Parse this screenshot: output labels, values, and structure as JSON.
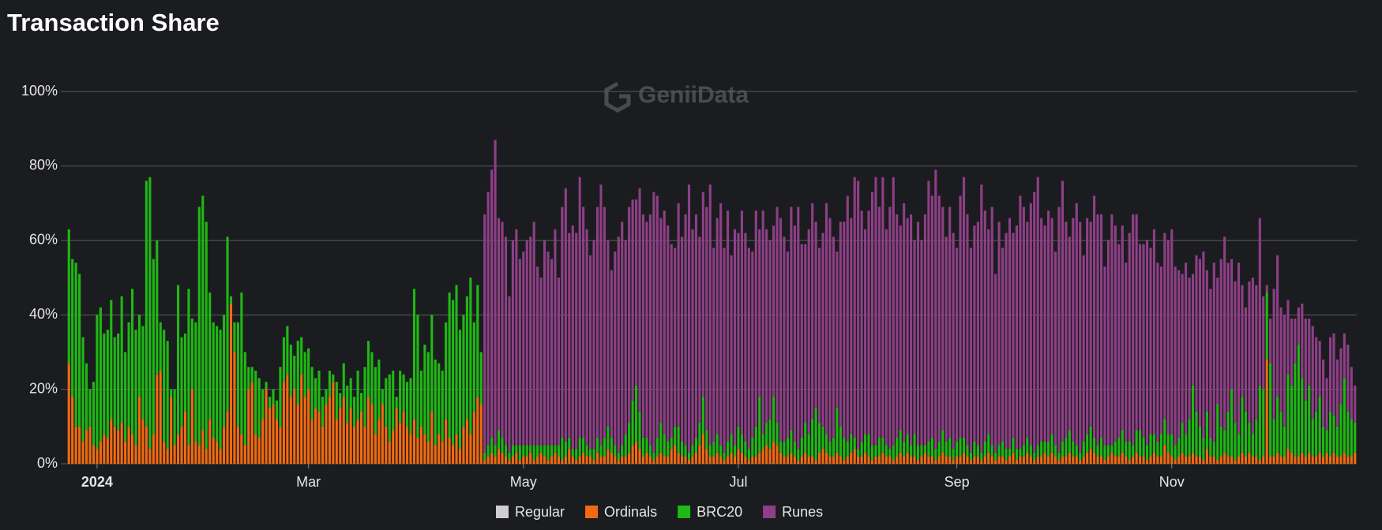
{
  "chart_data": {
    "type": "stacked-bar",
    "title": "Transaction Share",
    "watermark": "GeniiData",
    "xlim": [
      -0.5,
      365.5
    ],
    "xticks": [
      {
        "value": 8,
        "label": "2024"
      },
      {
        "value": 68,
        "label": "Mar"
      },
      {
        "value": 129,
        "label": "May"
      },
      {
        "value": 190,
        "label": "Jul"
      },
      {
        "value": 252,
        "label": "Sep"
      },
      {
        "value": 313,
        "label": "Nov"
      }
    ],
    "ylim": [
      0,
      100
    ],
    "yticks": [
      {
        "value": 0,
        "label": "0%"
      },
      {
        "value": 20,
        "label": "20%"
      },
      {
        "value": 40,
        "label": "40%"
      },
      {
        "value": 60,
        "label": "60%"
      },
      {
        "value": 80,
        "label": "80%"
      },
      {
        "value": 100,
        "label": "100%"
      }
    ],
    "grid": true,
    "legend": "bottom",
    "series": [
      {
        "name": "Regular",
        "color": "#cfcfcf",
        "hidden": true
      },
      {
        "name": "Ordinals",
        "color": "#f26a0f",
        "values": [
          27,
          18,
          10,
          10,
          6,
          9,
          10,
          5,
          4,
          6,
          8,
          7,
          12,
          10,
          9,
          11,
          6,
          10,
          8,
          5,
          18,
          12,
          10,
          4,
          8,
          24,
          25,
          6,
          4,
          18,
          5,
          8,
          10,
          14,
          5,
          20,
          6,
          5,
          9,
          4,
          12,
          7,
          6,
          4,
          10,
          14,
          43,
          30,
          10,
          8,
          5,
          20,
          22,
          8,
          7,
          12,
          20,
          15,
          16,
          12,
          10,
          22,
          24,
          18,
          20,
          16,
          24,
          18,
          20,
          12,
          15,
          14,
          10,
          16,
          18,
          22,
          12,
          15,
          18,
          11,
          15,
          10,
          12,
          14,
          10,
          18,
          16,
          8,
          12,
          16,
          10,
          6,
          9,
          15,
          11,
          14,
          10,
          8,
          12,
          7,
          10,
          8,
          6,
          14,
          5,
          8,
          6,
          12,
          7,
          5,
          8,
          4,
          10,
          12,
          8,
          14,
          18,
          16,
          1,
          2,
          3,
          2,
          4,
          3,
          2,
          1,
          2,
          3,
          1,
          2,
          2,
          3,
          1,
          2,
          3,
          2,
          1,
          2,
          3,
          2,
          1,
          2,
          4,
          2,
          1,
          2,
          3,
          2,
          2,
          1,
          3,
          2,
          2,
          4,
          3,
          2,
          1,
          2,
          2,
          3,
          5,
          6,
          4,
          2,
          3,
          2,
          1,
          2,
          3,
          2,
          2,
          4,
          5,
          3,
          2,
          2,
          1,
          2,
          3,
          5,
          8,
          4,
          2,
          2,
          3,
          2,
          1,
          2,
          3,
          2,
          4,
          3,
          2,
          1,
          2,
          2,
          3,
          4,
          5,
          4,
          6,
          5,
          3,
          2,
          2,
          3,
          2,
          1,
          2,
          3,
          2,
          2,
          1,
          3,
          4,
          3,
          2,
          2,
          3,
          2,
          1,
          2,
          3,
          4,
          2,
          2,
          3,
          2,
          1,
          2,
          2,
          3,
          2,
          2,
          1,
          2,
          3,
          2,
          3,
          2,
          2,
          1,
          2,
          3,
          2,
          2,
          1,
          2,
          3,
          2,
          2,
          1,
          2,
          2,
          3,
          2,
          1,
          2,
          2,
          1,
          2,
          3,
          2,
          1,
          2,
          2,
          1,
          2,
          3,
          1,
          2,
          2,
          3,
          2,
          1,
          2,
          2,
          3,
          2,
          3,
          2,
          1,
          2,
          2,
          3,
          2,
          2,
          1,
          2,
          3,
          4,
          3,
          2,
          2,
          1,
          2,
          3,
          2,
          2,
          3,
          2,
          1,
          2,
          3,
          2,
          2,
          1,
          2,
          3,
          2,
          2,
          5,
          3,
          2,
          1,
          2,
          3,
          2,
          2,
          3,
          2,
          2,
          1,
          4,
          2,
          2,
          1,
          2,
          3,
          2,
          2,
          1,
          2,
          3,
          2,
          3,
          2,
          2,
          1,
          2,
          28,
          2,
          2,
          3,
          2,
          2,
          4,
          3,
          2,
          2,
          3,
          2,
          3,
          2,
          2,
          3,
          2,
          3,
          2,
          3,
          2,
          2,
          3,
          2,
          2,
          3
        ]
      },
      {
        "name": "BRC20",
        "color": "#1fb814",
        "values": [
          36,
          37,
          44,
          41,
          28,
          18,
          10,
          17,
          36,
          36,
          27,
          29,
          32,
          24,
          26,
          34,
          24,
          28,
          39,
          31,
          22,
          25,
          66,
          73,
          47,
          36,
          13,
          30,
          29,
          2,
          15,
          40,
          24,
          21,
          42,
          19,
          32,
          64,
          63,
          61,
          34,
          31,
          31,
          32,
          30,
          47,
          2,
          8,
          28,
          38,
          25,
          6,
          4,
          17,
          16,
          8,
          2,
          3,
          4,
          5,
          16,
          12,
          13,
          14,
          9,
          17,
          10,
          12,
          11,
          14,
          8,
          11,
          8,
          4,
          7,
          2,
          10,
          4,
          9,
          10,
          8,
          8,
          13,
          5,
          16,
          15,
          14,
          18,
          16,
          4,
          13,
          18,
          16,
          3,
          14,
          10,
          12,
          15,
          35,
          33,
          15,
          24,
          24,
          26,
          23,
          19,
          19,
          26,
          39,
          39,
          40,
          32,
          30,
          33,
          42,
          24,
          30,
          14,
          2,
          3,
          4,
          3,
          5,
          4,
          3,
          2,
          3,
          2,
          4,
          3,
          3,
          2,
          4,
          3,
          2,
          3,
          4,
          3,
          2,
          3,
          6,
          4,
          3,
          2,
          3,
          5,
          4,
          3,
          2,
          3,
          4,
          3,
          5,
          6,
          4,
          3,
          2,
          3,
          6,
          8,
          12,
          15,
          10,
          5,
          4,
          3,
          2,
          5,
          8,
          6,
          4,
          3,
          5,
          7,
          4,
          3,
          2,
          3,
          4,
          6,
          10,
          5,
          3,
          4,
          5,
          3,
          2,
          4,
          5,
          3,
          6,
          5,
          4,
          3,
          5,
          8,
          15,
          4,
          6,
          8,
          12,
          6,
          3,
          4,
          5,
          6,
          4,
          3,
          5,
          8,
          6,
          10,
          14,
          8,
          6,
          5,
          4,
          5,
          12,
          8,
          6,
          4,
          5,
          3,
          2,
          4,
          5,
          6,
          4,
          3,
          5,
          4,
          3,
          2,
          4,
          5,
          6,
          4,
          5,
          3,
          6,
          4,
          3,
          2,
          4,
          5,
          3,
          4,
          6,
          4,
          5,
          3,
          4,
          5,
          4,
          3,
          2,
          4,
          3,
          2,
          4,
          5,
          3,
          2,
          3,
          4,
          3,
          2,
          4,
          3,
          2,
          3,
          4,
          3,
          2,
          3,
          4,
          3,
          4,
          5,
          3,
          2,
          4,
          5,
          6,
          4,
          3,
          2,
          4,
          5,
          6,
          4,
          3,
          5,
          4,
          3,
          2,
          4,
          5,
          6,
          4,
          5,
          3,
          6,
          7,
          5,
          4,
          6,
          5,
          4,
          6,
          7,
          5,
          6,
          4,
          5,
          8,
          6,
          10,
          18,
          12,
          8,
          6,
          10,
          5,
          4,
          15,
          8,
          6,
          12,
          18,
          10,
          6,
          15,
          12,
          8,
          6,
          10,
          20,
          18,
          18,
          25,
          10,
          15,
          12,
          8,
          20,
          18,
          25,
          30,
          20,
          15,
          18,
          10,
          12,
          15,
          8,
          6,
          12,
          10,
          8,
          14,
          20,
          12,
          10,
          8
        ]
      },
      {
        "name": "Runes",
        "color": "#8e3f86",
        "values": [
          null,
          null,
          null,
          null,
          null,
          null,
          null,
          null,
          null,
          null,
          null,
          null,
          null,
          null,
          null,
          null,
          null,
          null,
          null,
          null,
          null,
          null,
          null,
          null,
          null,
          null,
          null,
          null,
          null,
          null,
          null,
          null,
          null,
          null,
          null,
          null,
          null,
          null,
          null,
          null,
          null,
          null,
          null,
          null,
          null,
          null,
          null,
          null,
          null,
          null,
          null,
          null,
          null,
          null,
          null,
          null,
          null,
          null,
          null,
          null,
          null,
          null,
          null,
          null,
          null,
          null,
          null,
          null,
          null,
          null,
          null,
          null,
          null,
          null,
          null,
          null,
          null,
          null,
          null,
          null,
          null,
          null,
          null,
          null,
          null,
          null,
          null,
          null,
          null,
          null,
          null,
          null,
          null,
          null,
          null,
          null,
          null,
          null,
          null,
          null,
          null,
          null,
          null,
          null,
          null,
          null,
          null,
          null,
          null,
          null,
          null,
          null,
          null,
          null,
          null,
          null,
          null,
          null,
          64,
          68,
          72,
          82,
          57,
          58,
          56,
          42,
          55,
          58,
          50,
          52,
          55,
          56,
          60,
          48,
          45,
          55,
          52,
          50,
          58,
          45,
          62,
          68,
          55,
          60,
          58,
          70,
          62,
          58,
          52,
          56,
          62,
          70,
          62,
          50,
          45,
          52,
          58,
          60,
          52,
          58,
          54,
          50,
          60,
          60,
          58,
          62,
          70,
          65,
          55,
          60,
          58,
          52,
          48,
          60,
          55,
          62,
          72,
          58,
          60,
          50,
          55,
          60,
          70,
          52,
          58,
          65,
          55,
          62,
          48,
          58,
          52,
          60,
          56,
          54,
          50,
          58,
          45,
          60,
          52,
          48,
          46,
          58,
          60,
          55,
          50,
          60,
          58,
          65,
          52,
          48,
          55,
          58,
          50,
          47,
          52,
          62,
          60,
          54,
          42,
          55,
          58,
          66,
          58,
          70,
          72,
          62,
          55,
          60,
          68,
          72,
          62,
          70,
          58,
          65,
          72,
          60,
          55,
          64,
          58,
          62,
          52,
          60,
          55,
          62,
          70,
          65,
          75,
          66,
          60,
          55,
          62,
          58,
          52,
          65,
          70,
          62,
          55,
          58,
          60,
          72,
          62,
          55,
          64,
          48,
          60,
          52,
          58,
          62,
          55,
          60,
          68,
          64,
          58,
          65,
          70,
          72,
          60,
          58,
          62,
          58,
          52,
          66,
          70,
          58,
          52,
          60,
          65,
          62,
          50,
          58,
          55,
          65,
          62,
          60,
          48,
          55,
          62,
          58,
          52,
          55,
          48,
          56,
          62,
          58,
          50,
          52,
          55,
          50,
          55,
          48,
          45,
          50,
          52,
          55,
          48,
          45,
          40,
          46,
          38,
          30,
          42,
          45,
          50,
          38,
          40,
          48,
          34,
          45,
          52,
          40,
          35,
          38,
          46,
          30,
          28,
          38,
          42,
          36,
          45,
          25,
          2,
          12,
          35,
          38,
          28,
          30,
          20,
          18,
          12,
          10,
          20,
          22,
          18,
          25,
          20,
          15,
          18,
          14,
          20,
          22,
          18,
          15,
          12,
          18,
          14,
          10
        ]
      }
    ]
  }
}
